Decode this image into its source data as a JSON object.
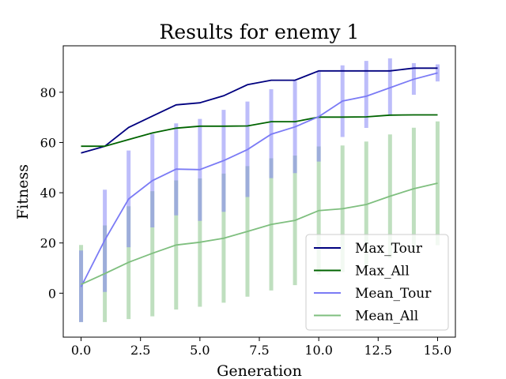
{
  "chart_data": {
    "type": "line",
    "title": "Results for enemy 1",
    "xlabel": "Generation",
    "ylabel": "Fitness",
    "xlim": [
      -0.75,
      15.75
    ],
    "ylim": [
      -17.5,
      98.5
    ],
    "xticks": [
      0.0,
      2.5,
      5.0,
      7.5,
      10.0,
      12.5,
      15.0
    ],
    "xtick_labels": [
      "0.0",
      "2.5",
      "5.0",
      "7.5",
      "10.0",
      "12.5",
      "15.0"
    ],
    "yticks": [
      0,
      20,
      40,
      60,
      80
    ],
    "ytick_labels": [
      "0",
      "20",
      "40",
      "60",
      "80"
    ],
    "legend_position": "lower-right",
    "grid": false,
    "x": [
      0,
      1,
      2,
      3,
      4,
      5,
      6,
      7,
      8,
      9,
      10,
      11,
      12,
      13,
      14,
      15
    ],
    "series": [
      {
        "name": "Max_Tour",
        "color": "#00007f",
        "values": [
          55.8,
          58.5,
          66,
          70.5,
          75,
          75.8,
          78.6,
          83,
          84.8,
          84.8,
          88.5,
          88.5,
          88.5,
          88.5,
          89.6,
          89.6
        ]
      },
      {
        "name": "Max_All",
        "color": "#006400",
        "values": [
          58.5,
          58.5,
          61.2,
          63.8,
          65.7,
          66.5,
          66.5,
          66.6,
          68.3,
          68.3,
          70.1,
          70.1,
          70.2,
          70.9,
          71,
          71
        ]
      },
      {
        "name": "Mean_Tour",
        "color": "#7b7bf5",
        "values": [
          2.5,
          21.2,
          37.5,
          44.8,
          49.4,
          49.2,
          52.8,
          57.2,
          63.3,
          66.2,
          70.3,
          76.5,
          78.4,
          81.8,
          85.2,
          87.7
        ],
        "error_low": [
          -11.5,
          0.5,
          18.3,
          26.2,
          31,
          28.8,
          32.4,
          38.3,
          45.8,
          47.8,
          52.4,
          62.2,
          65.8,
          70.6,
          79,
          84.3
        ],
        "error_high": [
          17,
          41.2,
          56.8,
          63.4,
          67.6,
          69.4,
          73,
          76.3,
          81.2,
          84.5,
          88.2,
          90.7,
          92.5,
          93.5,
          91.6,
          91.1
        ]
      },
      {
        "name": "Mean_All",
        "color": "#7fbf7f",
        "values": [
          3.5,
          7.8,
          12.3,
          15.9,
          19.2,
          20.3,
          21.9,
          24.6,
          27.4,
          29,
          32.9,
          33.6,
          35.3,
          38.6,
          41.6,
          43.8
        ],
        "error_low": [
          -11.5,
          -11.5,
          -10.3,
          -9.2,
          -6.5,
          -5.4,
          -3.8,
          -1.4,
          1.1,
          3.2,
          7.4,
          8.4,
          10.2,
          14,
          17.2,
          19.1
        ],
        "error_high": [
          19.2,
          27,
          34.6,
          40.6,
          44.9,
          45.7,
          47.6,
          50.6,
          53.7,
          54.8,
          58.4,
          58.8,
          60.4,
          63.2,
          65.9,
          68.4
        ]
      }
    ]
  }
}
